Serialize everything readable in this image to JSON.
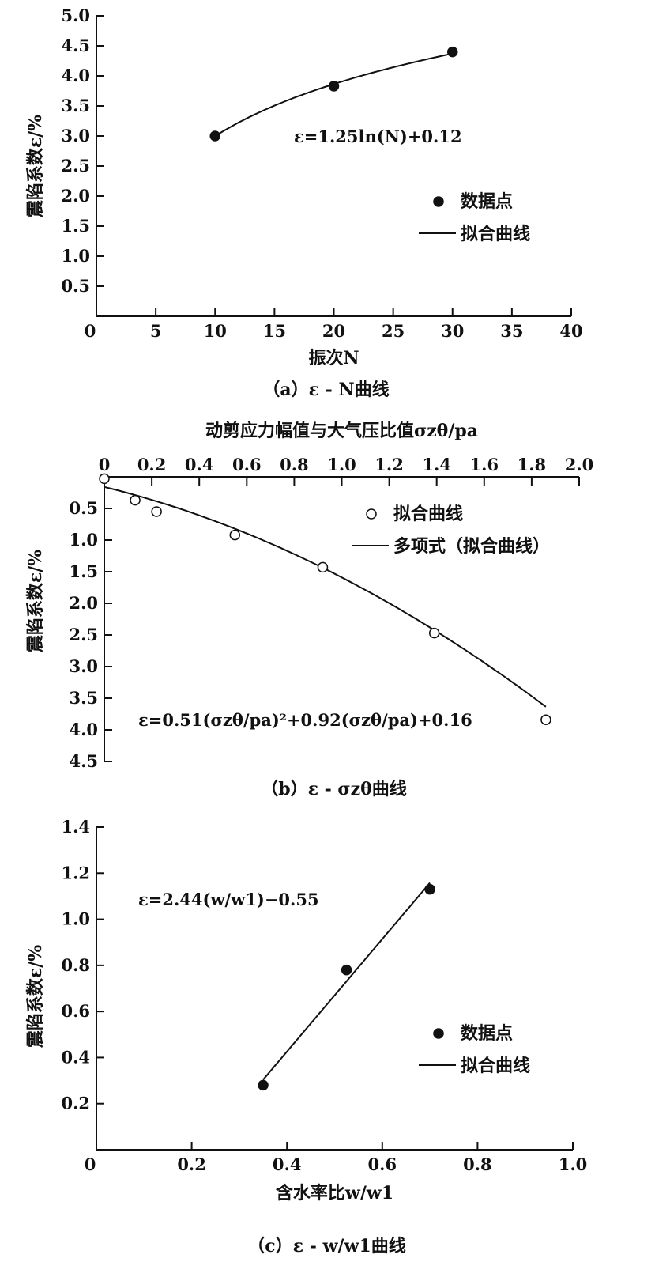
{
  "chart_data": [
    {
      "type": "scatter",
      "caption": "（a）ε - N曲线",
      "xlabel": "振次N",
      "ylabel": "震陷系数ε/%",
      "xlim": [
        0,
        40
      ],
      "ylim": [
        0,
        5.0
      ],
      "xticks": [
        "0",
        "5",
        "10",
        "15",
        "20",
        "25",
        "30",
        "35",
        "40"
      ],
      "yticks": [
        "0.5",
        "1.0",
        "1.5",
        "2.0",
        "2.5",
        "3.0",
        "3.5",
        "4.0",
        "4.5",
        "5.0"
      ],
      "points": {
        "name": "数据点",
        "x": [
          10,
          20,
          30
        ],
        "y": [
          3.0,
          3.83,
          4.4
        ]
      },
      "fit": {
        "name": "拟合曲线",
        "equation": "ε=1.25ln(N)+0.12",
        "a": 1.25,
        "b": 0.12,
        "xrange": [
          10,
          30
        ]
      },
      "legend": [
        "数据点",
        "拟合曲线"
      ],
      "legend_position": "right"
    },
    {
      "type": "scatter",
      "caption": "（b）ε - σzθ曲线",
      "xlabel": "动剪应力幅值与大气压比值σzθ/pa",
      "ylabel": "震陷系数ε/%",
      "xlim": [
        0,
        2.0
      ],
      "ylim": [
        0,
        4.5
      ],
      "y_inverted": true,
      "x_axis_position": "top",
      "xticks": [
        "0",
        "0.2",
        "0.4",
        "0.6",
        "0.8",
        "1.0",
        "1.2",
        "1.4",
        "1.6",
        "1.8",
        "2.0"
      ],
      "yticks": [
        "0.5",
        "1.0",
        "1.5",
        "2.0",
        "2.5",
        "3.0",
        "3.5",
        "4.0",
        "4.5"
      ],
      "points": {
        "name": "拟合曲线",
        "x": [
          0.0,
          0.13,
          0.22,
          0.55,
          0.92,
          1.39,
          1.86
        ],
        "y": [
          0.03,
          0.37,
          0.55,
          0.92,
          1.43,
          2.47,
          3.84
        ]
      },
      "fit": {
        "name": "多项式（拟合曲线）",
        "equation": "ε=0.51(σzθ/pa)²+0.92(σzθ/pa)+0.16",
        "a": 0.51,
        "b": 0.92,
        "c": 0.16,
        "xrange": [
          0,
          1.86
        ]
      },
      "legend": [
        "拟合曲线",
        "多项式（拟合曲线）"
      ],
      "legend_position": "top-right"
    },
    {
      "type": "scatter",
      "caption": "（c）ε - w/w1曲线",
      "xlabel": "含水率比w/w1",
      "ylabel": "震陷系数ε/%",
      "xlim": [
        0,
        1.0
      ],
      "ylim": [
        0,
        1.4
      ],
      "xticks": [
        "0",
        "0.2",
        "0.4",
        "0.6",
        "0.8",
        "1.0"
      ],
      "yticks": [
        "0.2",
        "0.4",
        "0.6",
        "0.8",
        "1.0",
        "1.2",
        "1.4"
      ],
      "points": {
        "name": "数据点",
        "x": [
          0.35,
          0.525,
          0.7
        ],
        "y": [
          0.28,
          0.78,
          1.13
        ]
      },
      "fit": {
        "name": "拟合曲线",
        "equation": "ε=2.44(w/w1)−0.55",
        "a": 2.44,
        "b": -0.55,
        "xrange": [
          0.35,
          0.7
        ]
      },
      "legend": [
        "数据点",
        "拟合曲线"
      ],
      "legend_position": "bottom-right"
    }
  ]
}
